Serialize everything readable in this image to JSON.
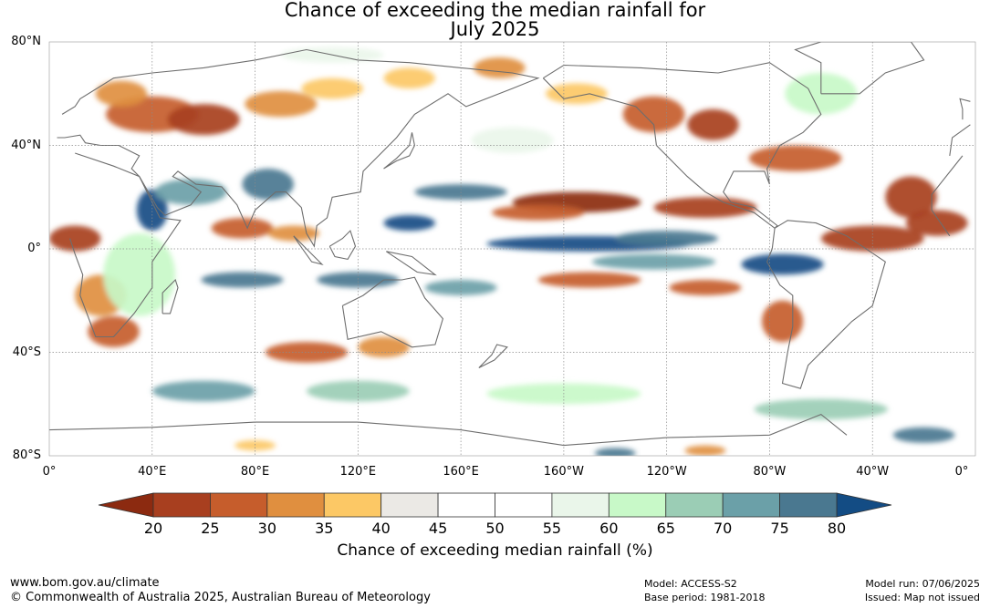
{
  "title": {
    "line1": "Chance of exceeding the median rainfall for",
    "line2": "July 2025"
  },
  "map": {
    "lat_labels": [
      "80°N",
      "40°N",
      "0°",
      "40°S",
      "80°S"
    ],
    "lon_labels": [
      "0°",
      "40°E",
      "80°E",
      "120°E",
      "160°E",
      "160°W",
      "120°W",
      "80°W",
      "40°W",
      "0°"
    ]
  },
  "colorbar": {
    "ticks": [
      "20",
      "25",
      "30",
      "35",
      "40",
      "45",
      "50",
      "55",
      "60",
      "65",
      "70",
      "75",
      "80"
    ],
    "title": "Chance of exceeding median rainfall (%)",
    "low_color": "#8c2a10",
    "high_color": "#134c84",
    "colors": [
      "#a83f1f",
      "#c65d2c",
      "#e08f3f",
      "#fcc865",
      "#ebe9e5",
      "#ffffff",
      "#ffffff",
      "#eaf6ea",
      "#c8f9c8",
      "#9bcdb5",
      "#6ba0a8",
      "#4a7890"
    ]
  },
  "footer": {
    "website": "www.bom.gov.au/climate",
    "copyright": "© Commonwealth of Australia 2025, Australian Bureau of Meteorology",
    "model": "Model: ACCESS-S2",
    "base_period": "Base period: 1981-2018",
    "model_run": "Model run: 07/06/2025",
    "issued": "Issued: Map not issued"
  }
}
